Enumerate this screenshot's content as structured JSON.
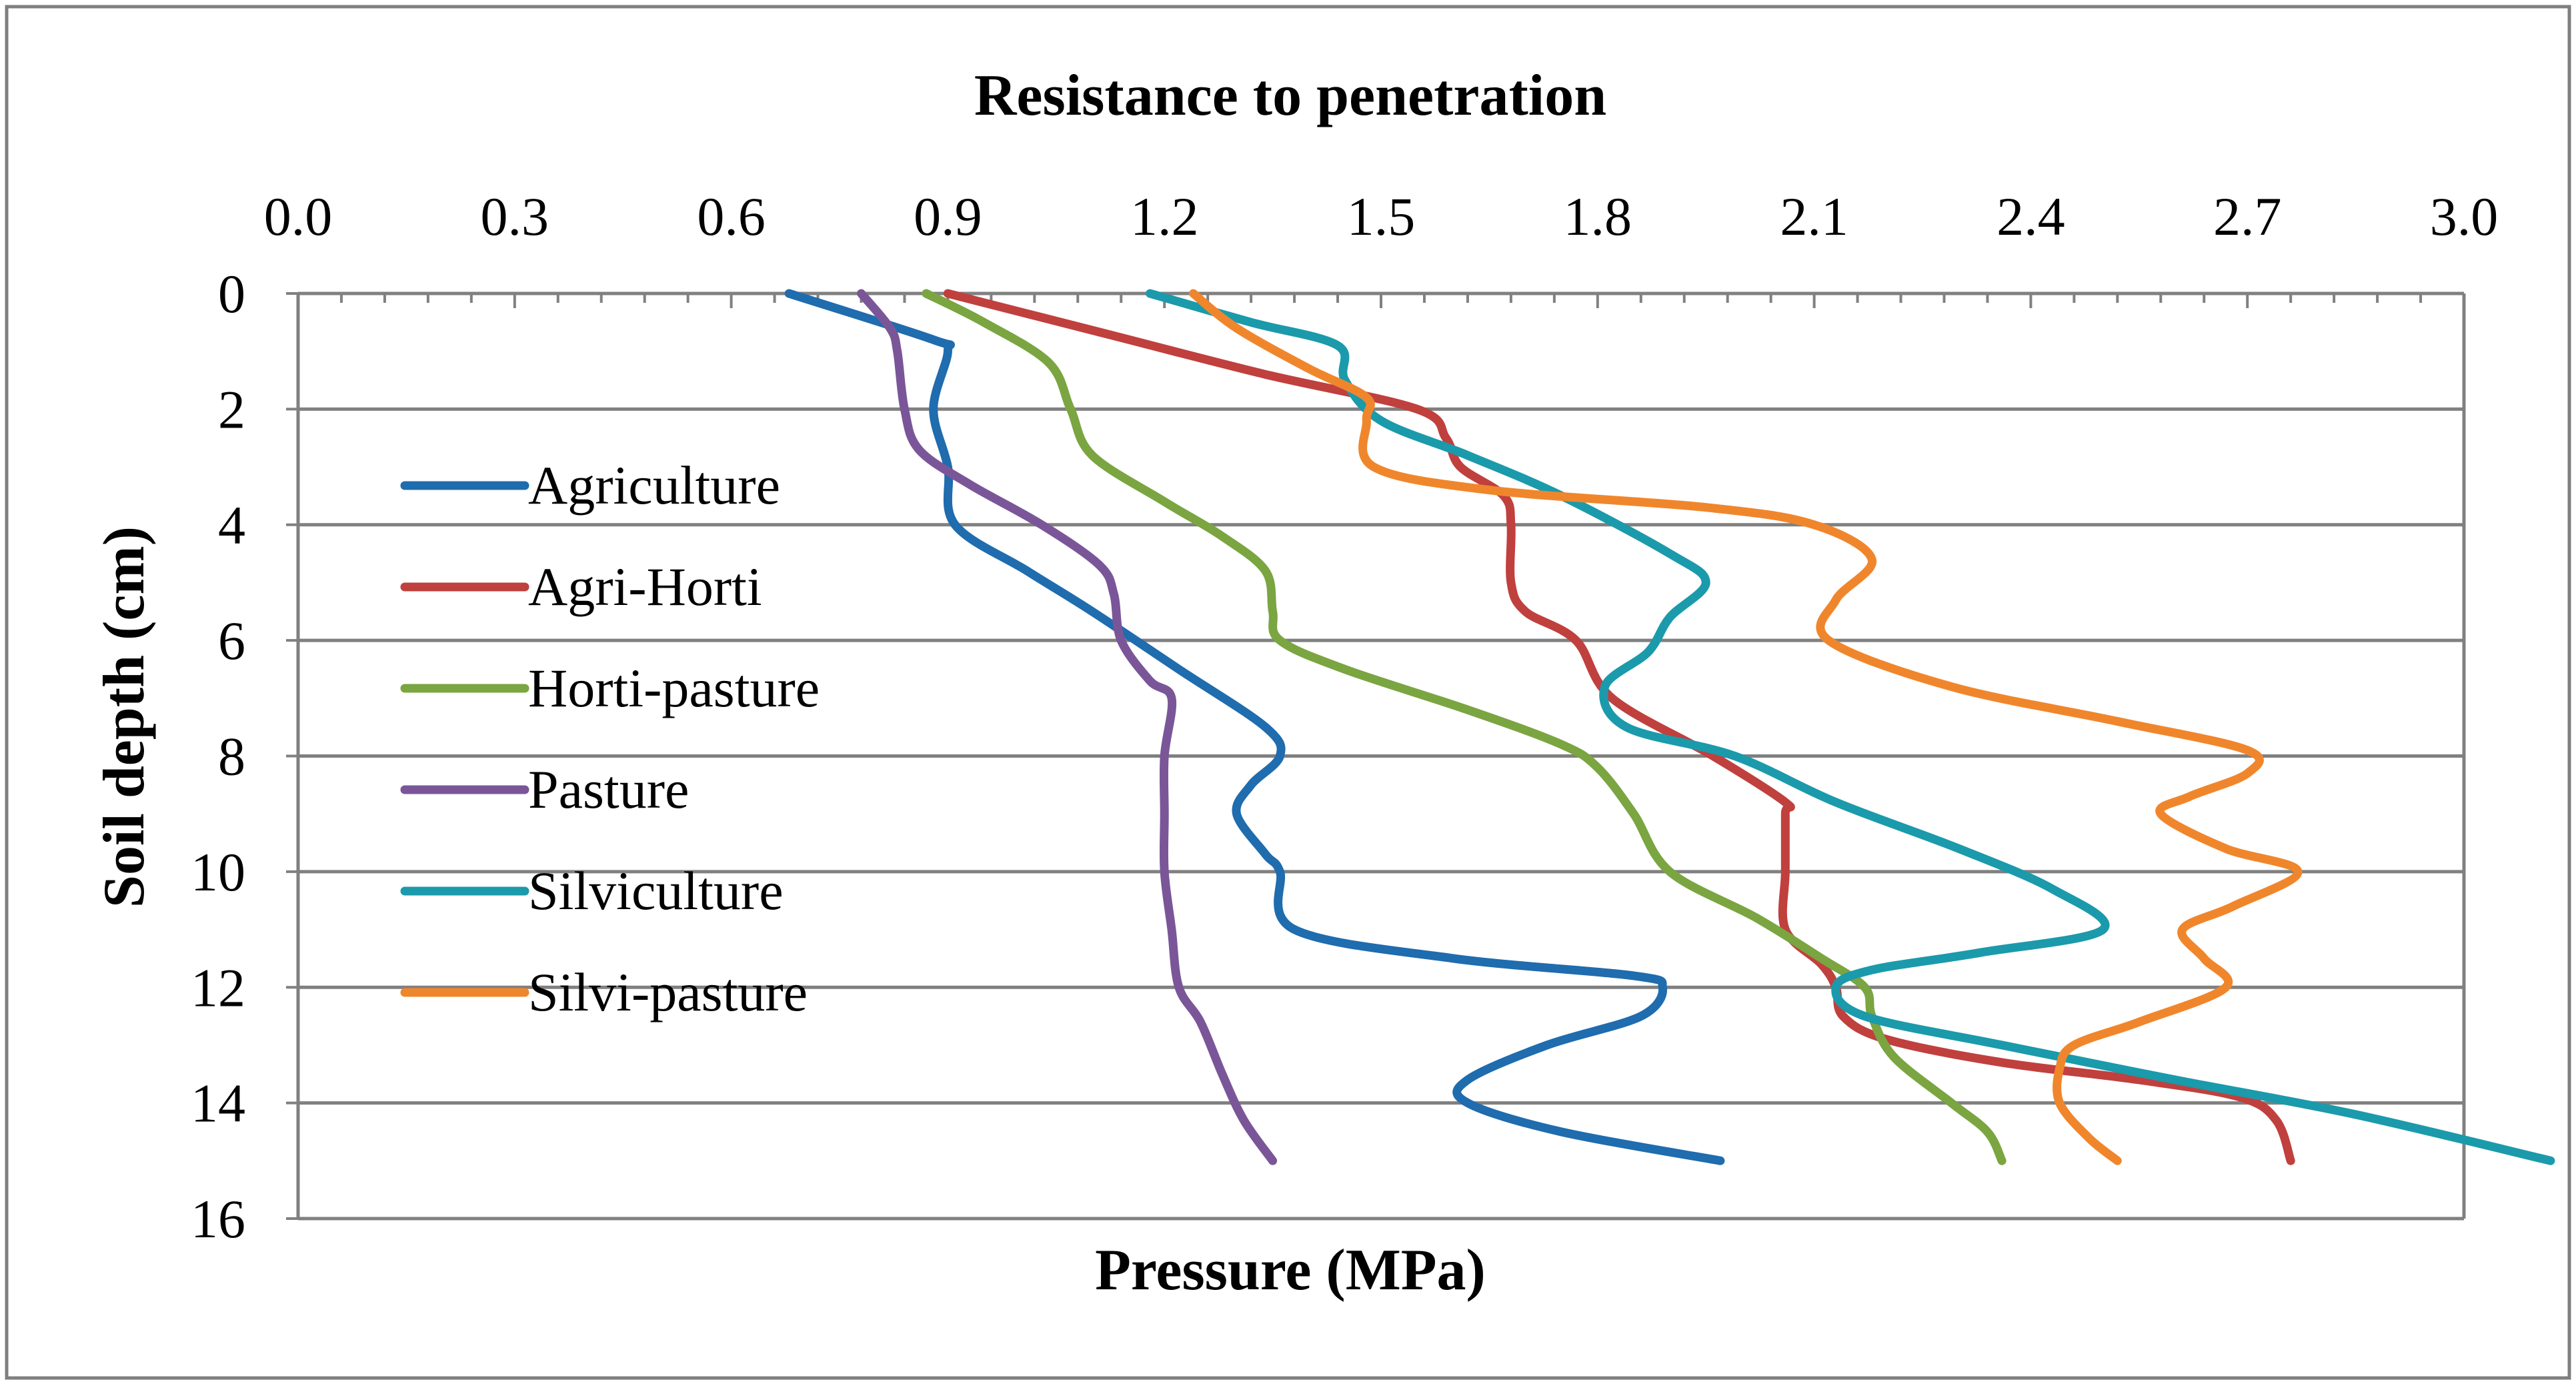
{
  "chart_data": {
    "type": "line",
    "orientation": "depth-profile",
    "title": "Resistance to penetration",
    "xlabel": "Pressure (MPa)",
    "ylabel": "Soil depth (cm)",
    "xlim": [
      0,
      3.0
    ],
    "ylim": [
      0,
      16
    ],
    "x_ticks": [
      "0.0",
      "0.3",
      "0.6",
      "0.9",
      "1.2",
      "1.5",
      "1.8",
      "2.1",
      "2.4",
      "2.7",
      "3.0"
    ],
    "y_ticks": [
      "0",
      "2",
      "4",
      "6",
      "8",
      "10",
      "12",
      "14",
      "16"
    ],
    "x_axis_position": "top",
    "grid": "horizontal",
    "legend_position": "left",
    "series": [
      {
        "name": "Agriculture",
        "color": "#1F6CAE",
        "points": [
          [
            0.68,
            0
          ],
          [
            0.88,
            0.8
          ],
          [
            0.9,
            1
          ],
          [
            0.88,
            2
          ],
          [
            0.9,
            3
          ],
          [
            0.91,
            4
          ],
          [
            1.01,
            4.8
          ],
          [
            1.1,
            5.5
          ],
          [
            1.22,
            6.5
          ],
          [
            1.34,
            7.5
          ],
          [
            1.36,
            8
          ],
          [
            1.32,
            8.5
          ],
          [
            1.3,
            9
          ],
          [
            1.34,
            9.7
          ],
          [
            1.36,
            10
          ],
          [
            1.38,
            11
          ],
          [
            1.6,
            11.5
          ],
          [
            1.85,
            11.8
          ],
          [
            1.89,
            12
          ],
          [
            1.86,
            12.5
          ],
          [
            1.73,
            13
          ],
          [
            1.62,
            13.6
          ],
          [
            1.62,
            14
          ],
          [
            1.75,
            14.5
          ],
          [
            1.97,
            15
          ]
        ]
      },
      {
        "name": "Agri-Horti",
        "color": "#C0403E",
        "points": [
          [
            0.9,
            0
          ],
          [
            1.12,
            0.7
          ],
          [
            1.34,
            1.4
          ],
          [
            1.55,
            2
          ],
          [
            1.59,
            2.5
          ],
          [
            1.61,
            3
          ],
          [
            1.67,
            3.5
          ],
          [
            1.68,
            4
          ],
          [
            1.68,
            5
          ],
          [
            1.7,
            5.5
          ],
          [
            1.77,
            6
          ],
          [
            1.82,
            7
          ],
          [
            1.96,
            8
          ],
          [
            2.06,
            8.8
          ],
          [
            2.06,
            9
          ],
          [
            2.06,
            10
          ],
          [
            2.06,
            11
          ],
          [
            2.11,
            11.6
          ],
          [
            2.13,
            12
          ],
          [
            2.14,
            12.5
          ],
          [
            2.2,
            12.9
          ],
          [
            2.36,
            13.3
          ],
          [
            2.55,
            13.6
          ],
          [
            2.69,
            13.9
          ],
          [
            2.74,
            14.3
          ],
          [
            2.76,
            15
          ]
        ]
      },
      {
        "name": "Horti-pasture",
        "color": "#7AA541",
        "points": [
          [
            0.87,
            0
          ],
          [
            0.95,
            0.5
          ],
          [
            1.04,
            1.2
          ],
          [
            1.07,
            2
          ],
          [
            1.1,
            2.8
          ],
          [
            1.2,
            3.6
          ],
          [
            1.28,
            4.2
          ],
          [
            1.34,
            4.8
          ],
          [
            1.35,
            5.5
          ],
          [
            1.36,
            6
          ],
          [
            1.45,
            6.5
          ],
          [
            1.62,
            7.2
          ],
          [
            1.75,
            7.8
          ],
          [
            1.8,
            8.2
          ],
          [
            1.85,
            9
          ],
          [
            1.9,
            10
          ],
          [
            2.02,
            10.8
          ],
          [
            2.11,
            11.5
          ],
          [
            2.17,
            12
          ],
          [
            2.18,
            12.5
          ],
          [
            2.21,
            13.2
          ],
          [
            2.29,
            14
          ],
          [
            2.34,
            14.5
          ],
          [
            2.36,
            15
          ]
        ]
      },
      {
        "name": "Pasture",
        "color": "#7A5699",
        "points": [
          [
            0.78,
            0
          ],
          [
            0.82,
            0.6
          ],
          [
            0.83,
            1
          ],
          [
            0.84,
            2
          ],
          [
            0.86,
            2.7
          ],
          [
            0.93,
            3.3
          ],
          [
            1.03,
            4
          ],
          [
            1.11,
            4.7
          ],
          [
            1.13,
            5.2
          ],
          [
            1.14,
            6
          ],
          [
            1.18,
            6.7
          ],
          [
            1.21,
            7
          ],
          [
            1.2,
            8
          ],
          [
            1.2,
            9
          ],
          [
            1.2,
            10
          ],
          [
            1.21,
            11
          ],
          [
            1.22,
            12
          ],
          [
            1.25,
            12.6
          ],
          [
            1.28,
            13.5
          ],
          [
            1.31,
            14.3
          ],
          [
            1.35,
            15
          ]
        ]
      },
      {
        "name": "Silviculture",
        "color": "#1B9AAB",
        "points": [
          [
            1.18,
            0
          ],
          [
            1.32,
            0.5
          ],
          [
            1.44,
            0.9
          ],
          [
            1.45,
            1.5
          ],
          [
            1.5,
            2.2
          ],
          [
            1.62,
            2.8
          ],
          [
            1.75,
            3.5
          ],
          [
            1.9,
            4.5
          ],
          [
            1.95,
            5
          ],
          [
            1.9,
            5.6
          ],
          [
            1.87,
            6.2
          ],
          [
            1.81,
            6.8
          ],
          [
            1.84,
            7.5
          ],
          [
            1.99,
            8
          ],
          [
            2.13,
            8.8
          ],
          [
            2.3,
            9.6
          ],
          [
            2.43,
            10.3
          ],
          [
            2.5,
            11
          ],
          [
            2.33,
            11.4
          ],
          [
            2.18,
            11.7
          ],
          [
            2.13,
            12
          ],
          [
            2.17,
            12.5
          ],
          [
            2.36,
            13
          ],
          [
            2.6,
            13.6
          ],
          [
            2.85,
            14.2
          ],
          [
            3.12,
            15
          ]
        ]
      },
      {
        "name": "Silvi-pasture",
        "color": "#F0862C",
        "points": [
          [
            1.24,
            0
          ],
          [
            1.3,
            0.6
          ],
          [
            1.4,
            1.3
          ],
          [
            1.48,
            1.8
          ],
          [
            1.48,
            2.2
          ],
          [
            1.49,
            3
          ],
          [
            1.65,
            3.4
          ],
          [
            1.95,
            3.7
          ],
          [
            2.1,
            4
          ],
          [
            2.18,
            4.6
          ],
          [
            2.13,
            5.3
          ],
          [
            2.12,
            6
          ],
          [
            2.29,
            6.8
          ],
          [
            2.52,
            7.4
          ],
          [
            2.7,
            7.9
          ],
          [
            2.7,
            8.3
          ],
          [
            2.62,
            8.7
          ],
          [
            2.58,
            9
          ],
          [
            2.67,
            9.6
          ],
          [
            2.77,
            10
          ],
          [
            2.68,
            10.6
          ],
          [
            2.61,
            11
          ],
          [
            2.64,
            11.5
          ],
          [
            2.67,
            12
          ],
          [
            2.55,
            12.6
          ],
          [
            2.46,
            13
          ],
          [
            2.44,
            13.4
          ],
          [
            2.44,
            14
          ],
          [
            2.48,
            14.6
          ],
          [
            2.52,
            15
          ]
        ]
      }
    ]
  }
}
